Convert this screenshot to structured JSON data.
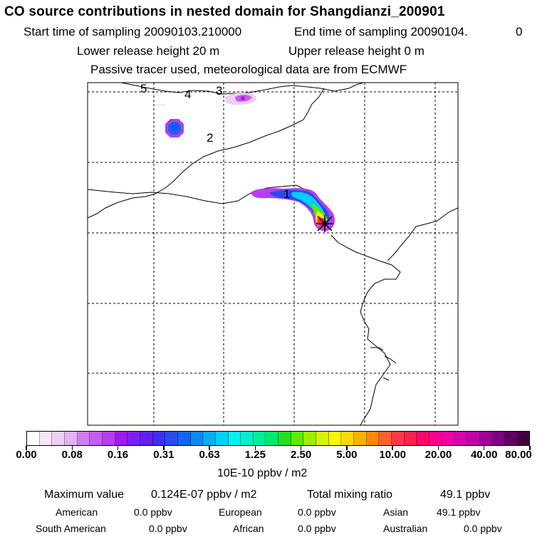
{
  "header": {
    "title": "CO  source contributions in nested domain for Shangdianzi_200901",
    "start_label": "Start time of sampling 20090103.210000",
    "end_label": "End time of sampling 20090104.",
    "end_suffix": "0",
    "lower_release": "Lower release height   20 m",
    "upper_release": "Upper release height    0 m",
    "tracer_note": "Passive tracer used, meteorological data are from ECMWF"
  },
  "map": {
    "markers": [
      "1",
      "2",
      "3",
      "4",
      "5"
    ]
  },
  "colorbar": {
    "colors": [
      "#ffffff",
      "#f7e6fb",
      "#eecff8",
      "#e2b2f4",
      "#cf7ff0",
      "#c55cee",
      "#b63df0",
      "#9d1af2",
      "#7e20f2",
      "#6020f2",
      "#4030f2",
      "#2a4af0",
      "#1466f0",
      "#0a8af2",
      "#08acf2",
      "#00d0f5",
      "#00f2f2",
      "#00f0c8",
      "#00f09a",
      "#00e870",
      "#20e020",
      "#60e800",
      "#a0ec00",
      "#d8f200",
      "#f8f800",
      "#ffd800",
      "#ffb000",
      "#ff8800",
      "#ff6030",
      "#ff3848",
      "#ff2050",
      "#ff0868",
      "#ff0090",
      "#f000a8",
      "#d800b0",
      "#c000a8",
      "#a00098",
      "#800080",
      "#600060",
      "#400040"
    ],
    "ticks": [
      "0.00",
      "0.08",
      "0.16",
      "0.31",
      "0.63",
      "1.25",
      "2.50",
      "5.00",
      "10.00",
      "20.00",
      "40.00",
      "80.00"
    ],
    "units": "10E-10 ppbv / m2"
  },
  "summary": {
    "max_label": "Maximum value",
    "max_value": "0.124E-07 ppbv / m2",
    "total_label": "Total mixing ratio",
    "total_value": "49.1 ppbv"
  },
  "contributions": [
    {
      "name": "American",
      "value": "0.0 ppbv"
    },
    {
      "name": "European",
      "value": "0.0 ppbv"
    },
    {
      "name": "Asian",
      "value": "49.1 ppbv"
    },
    {
      "name": "South American",
      "value": "0.0 ppbv"
    },
    {
      "name": "African",
      "value": "0.0 ppbv"
    },
    {
      "name": "Australian",
      "value": "0.0 ppbv"
    }
  ]
}
